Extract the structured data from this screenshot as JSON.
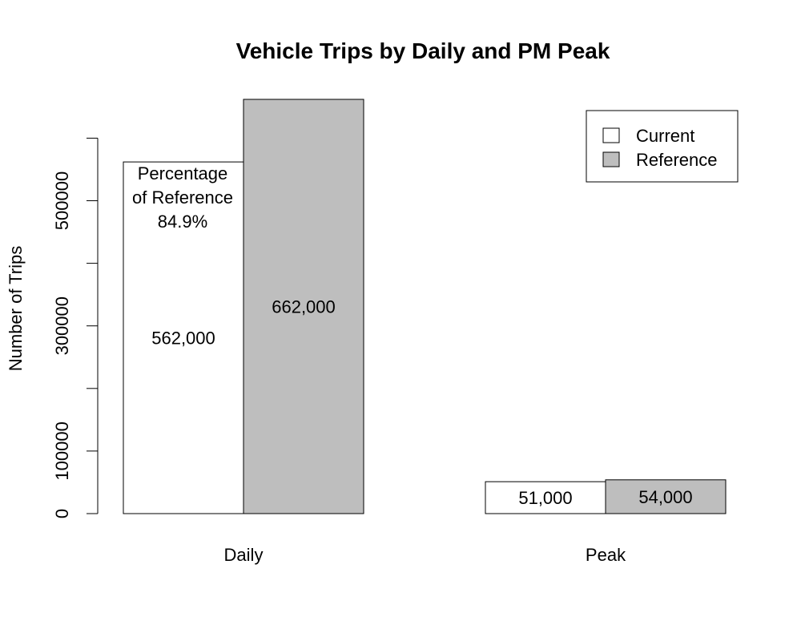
{
  "chart_data": {
    "type": "bar",
    "title": "Vehicle Trips by Daily and PM Peak",
    "xlabel": "",
    "ylabel": "Number of Trips",
    "categories": [
      "Daily",
      "Peak"
    ],
    "series": [
      {
        "name": "Current",
        "color": "#ffffff",
        "values": [
          562000,
          51000
        ],
        "labels": [
          "562,000",
          "51,000"
        ]
      },
      {
        "name": "Reference",
        "color": "#bebebe",
        "values": [
          662000,
          54000
        ],
        "labels": [
          "662,000",
          "54,000"
        ]
      }
    ],
    "ylim": [
      0,
      662000
    ],
    "yticks": [
      0,
      100000,
      200000,
      300000,
      400000,
      500000,
      600000
    ],
    "ytick_labels": [
      "0",
      "100000",
      "",
      "300000",
      "",
      "500000",
      ""
    ],
    "annotation": {
      "lines": [
        "Percentage",
        "of Reference",
        "84.9%"
      ]
    },
    "legend": {
      "position": "top-right",
      "entries": [
        "Current",
        "Reference"
      ]
    }
  }
}
